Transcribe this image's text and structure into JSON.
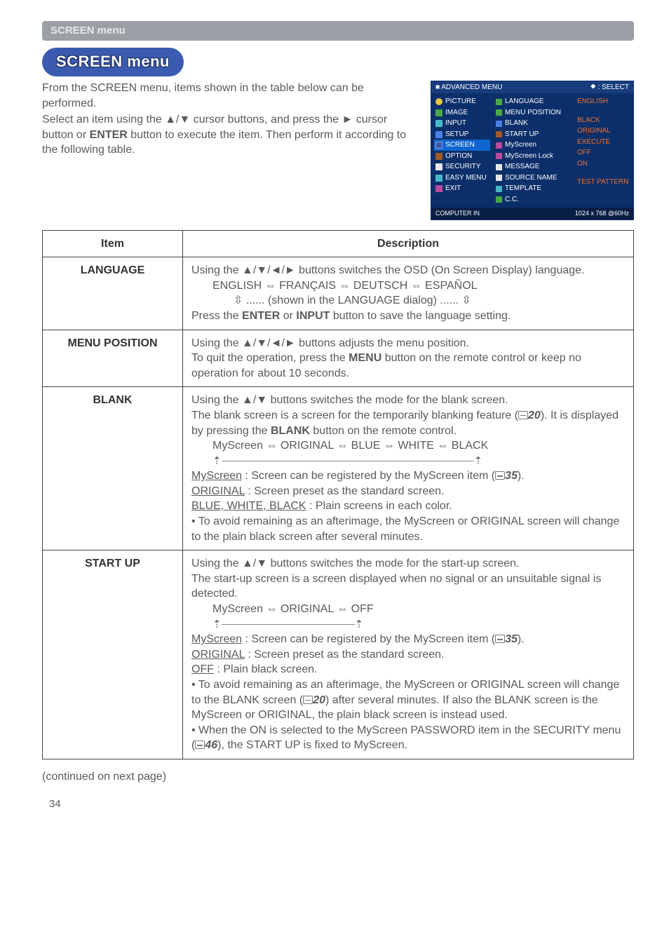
{
  "banner": "SCREEN menu",
  "pill_title": "SCREEN menu",
  "intro": {
    "p1": "From the SCREEN menu, items shown in the table below can be performed.",
    "p2a": "Select an item using the ▲/▼ cursor buttons, and press the ► cursor button or ",
    "p2_btn": "ENTER",
    "p2b": " button to execute the item. Then perform it according to the following table."
  },
  "osd": {
    "top_left": "■ ADVANCED MENU",
    "top_right": "⯁ : SELECT",
    "left_items": [
      {
        "icon": "sq-y",
        "label": "PICTURE"
      },
      {
        "icon": "sq-g",
        "label": "IMAGE"
      },
      {
        "icon": "sq-c",
        "label": "INPUT"
      },
      {
        "icon": "sq-b",
        "label": "SETUP"
      },
      {
        "icon": "sq-bl",
        "label": "SCREEN",
        "sel": true
      },
      {
        "icon": "sq-p",
        "label": "OPTION"
      },
      {
        "icon": "sq-m",
        "label": "SECURITY"
      },
      {
        "icon": "sq-c",
        "label": "EASY MENU"
      },
      {
        "icon": "sq-v",
        "label": "EXIT"
      }
    ],
    "mid_items": [
      "LANGUAGE",
      "MENU POSITION",
      "BLANK",
      "START UP",
      "MyScreen",
      "MyScreen Lock",
      "MESSAGE",
      "SOURCE NAME",
      "TEMPLATE",
      "C.C."
    ],
    "right_values": [
      "ENGLISH",
      "",
      "BLACK",
      "ORIGINAL",
      "EXECUTE",
      "OFF",
      "ON",
      "",
      "TEST PATTERN",
      ""
    ],
    "foot_left": "COMPUTER IN",
    "foot_right": "1024 x 768 @60Hz"
  },
  "table": {
    "head_item": "Item",
    "head_desc": "Description",
    "language": {
      "title": "LANGUAGE",
      "l1": "Using the ▲/▼/◄/► buttons switches the OSD (On Screen Display) language.",
      "l2": "ENGLISH ⇔ FRANÇAIS ⇔ DEUTSCH ⇔  ESPAÑOL",
      "l3": "   ⇳ ...... (shown in the LANGUAGE dialog) ...... ⇳",
      "l4a": "Press the ",
      "l4b1": "ENTER",
      "l4m": " or ",
      "l4b2": "INPUT",
      "l4c": " button to save the language setting."
    },
    "menu_pos": {
      "title": "MENU POSITION",
      "l1": "Using the ▲/▼/◄/► buttons adjusts the menu position.",
      "l2a": "To quit the operation, press the ",
      "l2b": "MENU",
      "l2c": " button on the remote control or keep no operation for about 10 seconds."
    },
    "blank": {
      "title": "BLANK",
      "l1": "Using the ▲/▼ buttons switches the mode for the blank screen.",
      "l2a": "The blank screen is a screen for the temporarily blanking feature (",
      "l2ref": "20",
      "l2b": "). It is displayed by pressing the ",
      "l2btn": "BLANK",
      "l2c": " button on the remote control.",
      "l3": "MyScreen ⇔ ORIGINAL ⇔ BLUE ⇔ WHITE ⇔ BLACK",
      "m1u": "MyScreen",
      "m1a": " : Screen can be registered by the MyScreen item (",
      "m1ref": "35",
      "m1b": ").",
      "m2u": "ORIGINAL",
      "m2a": " : Screen preset as the standard screen.",
      "m3u": "BLUE, WHITE, BLACK",
      "m3a": " : Plain screens in each color.",
      "l4": "• To avoid remaining as an afterimage, the MyScreen or ORIGINAL screen will change to the plain black screen after several minutes."
    },
    "start": {
      "title": "START UP",
      "l1": "Using the ▲/▼ buttons switches the mode for the start-up screen.",
      "l2": "The start-up screen is a screen displayed when no signal or an unsuitable signal is detected.",
      "l3": "MyScreen ⇔ ORIGINAL ⇔ OFF",
      "m1u": "MyScreen",
      "m1a": " : Screen can be registered by the MyScreen item (",
      "m1ref": "35",
      "m1b": ").",
      "m2u": "ORIGINAL",
      "m2a": " : Screen preset as the standard screen.",
      "m3u": "OFF",
      "m3a": " : Plain black screen.",
      "l4a": "• To avoid remaining as an afterimage, the MyScreen or ORIGINAL screen will change to the BLANK screen (",
      "l4ref1": "20",
      "l4b": ") after several minutes. If also the BLANK screen is the MyScreen or ORIGINAL, the plain black screen is instead used.",
      "l5a": "• When the ON is selected to the MyScreen PASSWORD item in the SECURITY menu (",
      "l5ref": "46",
      "l5b": "), the START UP is fixed to MyScreen."
    }
  },
  "continued": "(continued on next page)",
  "pagenum": "34"
}
